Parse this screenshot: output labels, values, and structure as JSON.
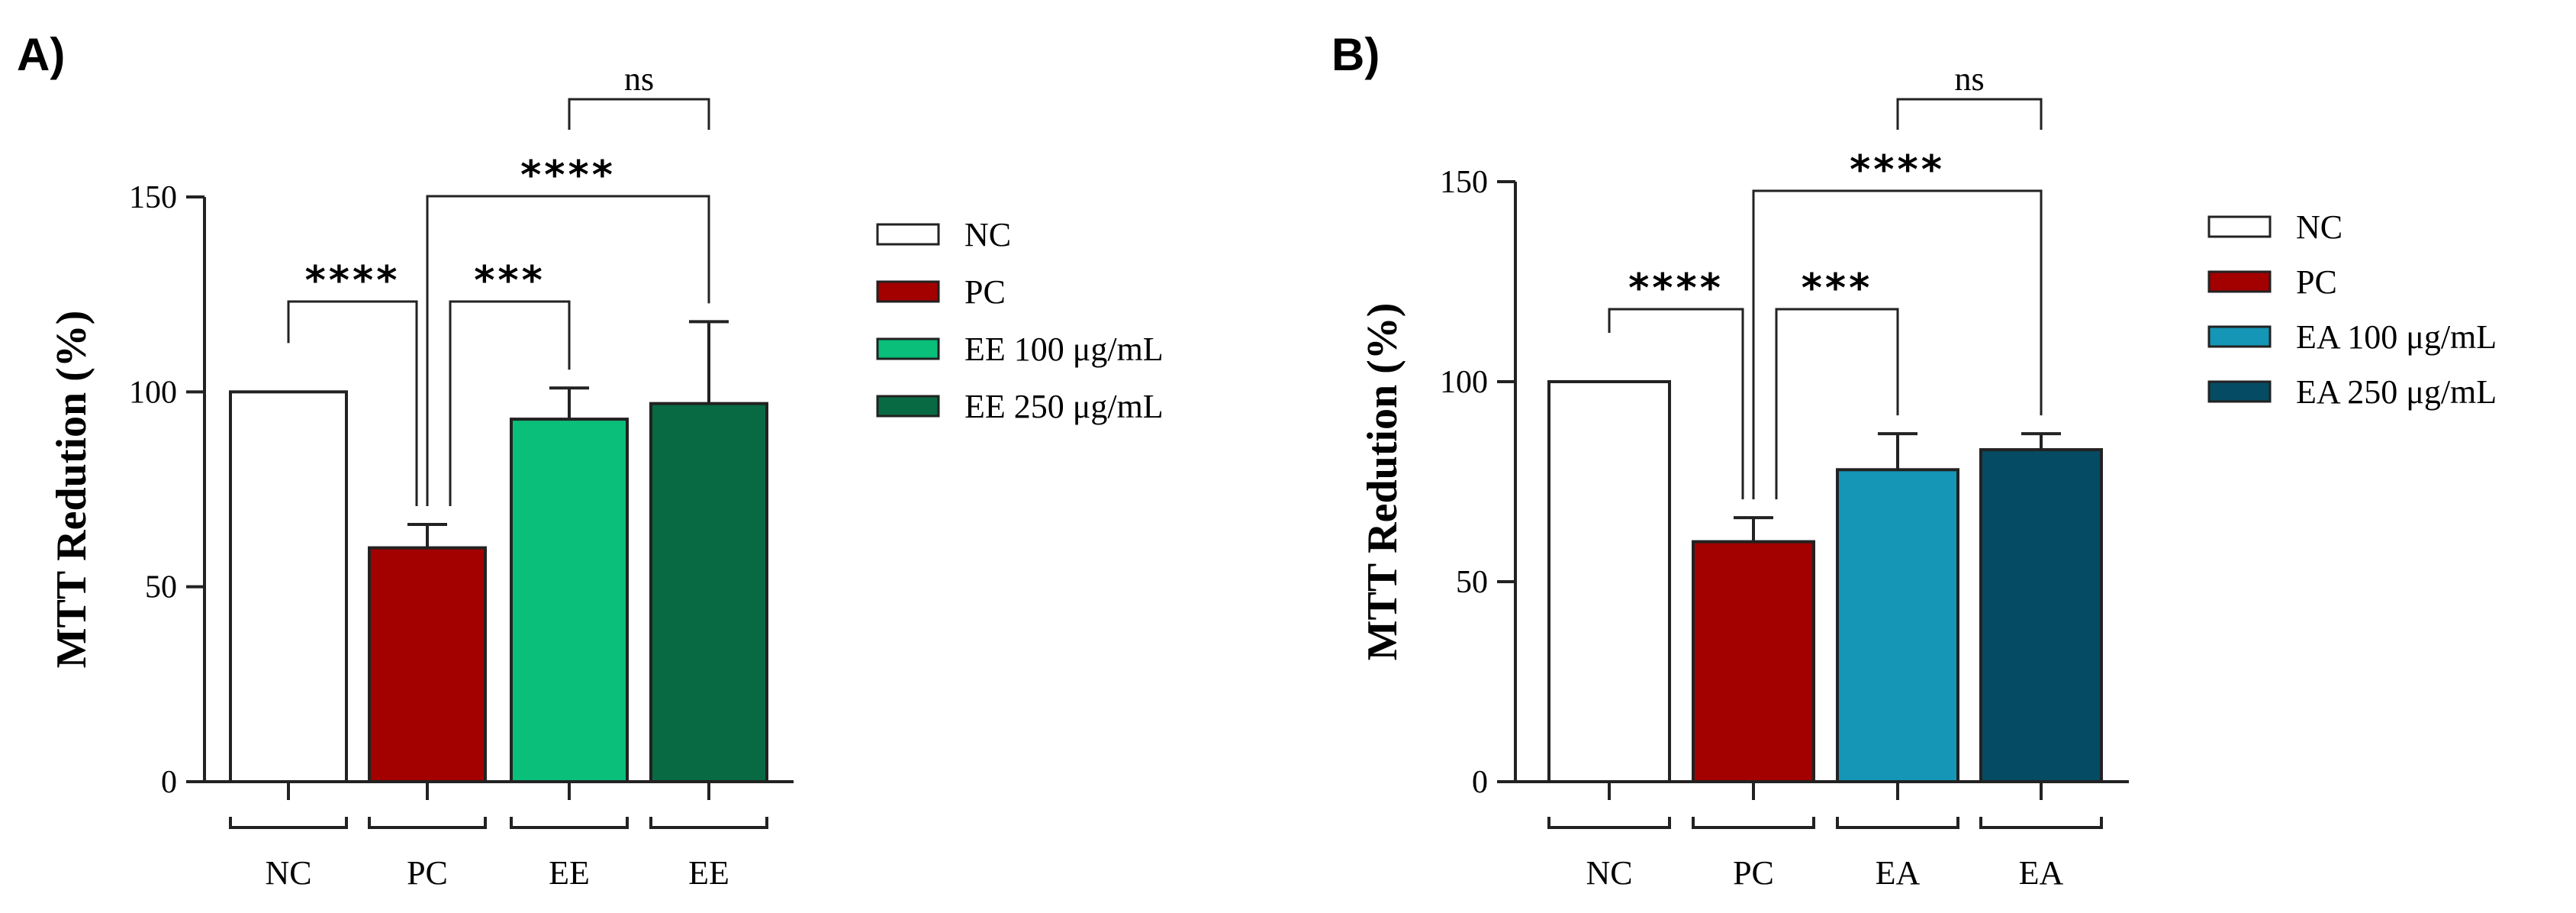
{
  "chart_data": [
    {
      "type": "bar",
      "panel_label": "A)",
      "title": "",
      "xlabel": "",
      "ylabel": "MTT Redution (%)",
      "ylim": [
        0,
        150
      ],
      "yticks": [
        0,
        50,
        100,
        150
      ],
      "grid": false,
      "categories": [
        "NC",
        "PC",
        "EE",
        "EE"
      ],
      "values": [
        100,
        60,
        93,
        97
      ],
      "errors": [
        0,
        6,
        8,
        21
      ],
      "colors": [
        "#ffffff",
        "#a30000",
        "#0abf7a",
        "#086a43"
      ],
      "legend_position": "right",
      "legend": [
        {
          "label": "NC",
          "color": "#ffffff"
        },
        {
          "label": "PC",
          "color": "#a30000"
        },
        {
          "label": "EE 100 μg/mL",
          "color": "#0abf7a"
        },
        {
          "label": "EE 250 μg/mL",
          "color": "#086a43"
        }
      ],
      "significance": [
        {
          "from": 0,
          "to": 1,
          "label": "****"
        },
        {
          "from": 1,
          "to": 2,
          "label": "***"
        },
        {
          "from": 1,
          "to": 3,
          "label": "****"
        },
        {
          "from": 2,
          "to": 3,
          "label": "ns"
        }
      ]
    },
    {
      "type": "bar",
      "panel_label": "B)",
      "title": "",
      "xlabel": "",
      "ylabel": "MTT Redution (%)",
      "ylim": [
        0,
        150
      ],
      "yticks": [
        0,
        50,
        100,
        150
      ],
      "grid": false,
      "categories": [
        "NC",
        "PC",
        "EA",
        "EA"
      ],
      "values": [
        100,
        60,
        78,
        83
      ],
      "errors": [
        0,
        6,
        9,
        4
      ],
      "colors": [
        "#ffffff",
        "#a30000",
        "#1596b6",
        "#054b63"
      ],
      "legend_position": "right",
      "legend": [
        {
          "label": "NC",
          "color": "#ffffff"
        },
        {
          "label": "PC",
          "color": "#a30000"
        },
        {
          "label": "EA 100 μg/mL",
          "color": "#1596b6"
        },
        {
          "label": "EA 250 μg/mL",
          "color": "#054b63"
        }
      ],
      "significance": [
        {
          "from": 0,
          "to": 1,
          "label": "****"
        },
        {
          "from": 1,
          "to": 2,
          "label": "***"
        },
        {
          "from": 1,
          "to": 3,
          "label": "****"
        },
        {
          "from": 2,
          "to": 3,
          "label": "ns"
        }
      ]
    }
  ]
}
